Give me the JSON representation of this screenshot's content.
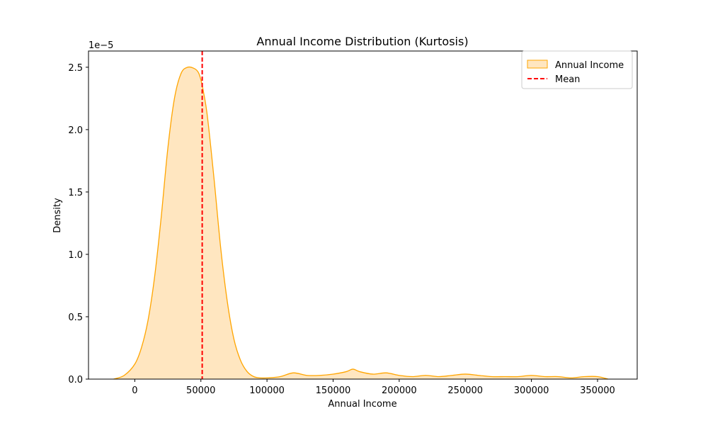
{
  "chart_data": {
    "type": "area",
    "title": "Annual Income Distribution (Kurtosis)",
    "xlabel": "Annual Income",
    "ylabel": "Density",
    "y_scale_label": "1e−5",
    "y_scale_factor": 1e-05,
    "xlim": [
      -35000,
      380000
    ],
    "ylim": [
      0,
      2.63
    ],
    "x_ticks": [
      0,
      50000,
      100000,
      150000,
      200000,
      250000,
      300000,
      350000
    ],
    "x_tick_labels": [
      "0",
      "50000",
      "100000",
      "150000",
      "200000",
      "250000",
      "300000",
      "350000"
    ],
    "y_ticks": [
      0.0,
      0.5,
      1.0,
      1.5,
      2.0,
      2.5
    ],
    "y_tick_labels": [
      "0.0",
      "0.5",
      "1.0",
      "1.5",
      "2.0",
      "2.5"
    ],
    "grid": false,
    "legend_position": "top-right",
    "series": [
      {
        "name": "Annual Income",
        "kind": "density-area",
        "x": [
          -16000,
          -8000,
          0,
          5000,
          10000,
          15000,
          20000,
          25000,
          30000,
          35000,
          40000,
          45000,
          48000,
          50000,
          52000,
          55000,
          60000,
          65000,
          70000,
          75000,
          80000,
          85000,
          90000,
          95000,
          100000,
          110000,
          120000,
          130000,
          140000,
          150000,
          160000,
          165000,
          170000,
          180000,
          190000,
          200000,
          210000,
          220000,
          230000,
          240000,
          250000,
          260000,
          270000,
          280000,
          290000,
          300000,
          310000,
          320000,
          330000,
          340000,
          350000,
          358000
        ],
        "y": [
          0.0,
          0.03,
          0.12,
          0.25,
          0.47,
          0.82,
          1.3,
          1.85,
          2.25,
          2.45,
          2.5,
          2.49,
          2.46,
          2.4,
          2.3,
          2.1,
          1.6,
          1.05,
          0.62,
          0.32,
          0.15,
          0.06,
          0.02,
          0.01,
          0.01,
          0.02,
          0.05,
          0.03,
          0.03,
          0.04,
          0.06,
          0.08,
          0.06,
          0.04,
          0.05,
          0.03,
          0.02,
          0.03,
          0.02,
          0.03,
          0.04,
          0.03,
          0.02,
          0.02,
          0.02,
          0.03,
          0.02,
          0.02,
          0.01,
          0.02,
          0.02,
          0.0
        ],
        "fill": "#ffe6c0",
        "stroke": "#ffa500"
      },
      {
        "name": "Mean",
        "kind": "vline",
        "x": 51000,
        "stroke": "#ff0000",
        "style": "dashed"
      }
    ]
  }
}
